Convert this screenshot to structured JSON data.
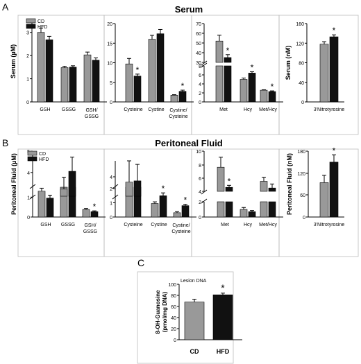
{
  "panel_letters": {
    "a": "A",
    "b": "B",
    "c": "C"
  },
  "titles": {
    "serum": "Serum",
    "peritoneal": "Peritoneal Fluid"
  },
  "legend": {
    "cd": "CD",
    "hfd": "HFD"
  },
  "colors": {
    "cd": "#999999",
    "hfd": "#111111"
  },
  "star": "*",
  "chart_data": [
    {
      "id": "a1",
      "type": "bar",
      "panel": "A",
      "ylabel": "Serum (µM)",
      "ylim": [
        0,
        3.5
      ],
      "yticks": [
        "0",
        "1",
        "2",
        "3"
      ],
      "categories": [
        "GSH",
        "GSSG",
        "GSH/ GSSG"
      ],
      "series": [
        {
          "name": "CD",
          "values": [
            3.0,
            1.48,
            2.03
          ],
          "err": [
            0.18,
            0.06,
            0.12
          ]
        },
        {
          "name": "HFD",
          "values": [
            2.68,
            1.5,
            1.8
          ],
          "err": [
            0.15,
            0.06,
            0.1
          ]
        }
      ],
      "sig": [
        false,
        false,
        false
      ]
    },
    {
      "id": "a2",
      "type": "bar",
      "panel": "A",
      "ylabel": "",
      "ylim": [
        0,
        20
      ],
      "yticks": [
        "0",
        "5",
        "10",
        "15",
        "20"
      ],
      "categories": [
        "Cysteine",
        "Cystine",
        "Cystine/ Cysteine"
      ],
      "series": [
        {
          "name": "CD",
          "values": [
            9.7,
            16.0,
            1.7
          ],
          "err": [
            1.4,
            1.0,
            0.15
          ]
        },
        {
          "name": "HFD",
          "values": [
            6.6,
            17.4,
            2.7
          ],
          "err": [
            0.5,
            1.1,
            0.3
          ]
        }
      ],
      "sig": [
        true,
        false,
        true
      ]
    },
    {
      "id": "a3",
      "type": "bar",
      "panel": "A",
      "ylabel": "",
      "ylim": [
        0,
        70
      ],
      "broken_axis": true,
      "yticks": [
        "0",
        "2",
        "4",
        "6",
        "8",
        "30",
        "40",
        "50",
        "60",
        "70"
      ],
      "categories": [
        "Met",
        "Hcy",
        "Met/Hcy"
      ],
      "series": [
        {
          "name": "CD",
          "values": [
            52,
            5.0,
            2.6
          ],
          "err": [
            6,
            0.3,
            0.1
          ]
        },
        {
          "name": "HFD",
          "values": [
            35,
            6.4,
            2.3
          ],
          "err": [
            3,
            0.3,
            0.15
          ]
        }
      ],
      "sig": [
        true,
        true,
        true
      ]
    },
    {
      "id": "a4",
      "type": "bar",
      "panel": "A",
      "ylabel": "Serum (nM)",
      "ylim": [
        0,
        160
      ],
      "yticks": [
        "0",
        "40",
        "80",
        "120",
        "160"
      ],
      "categories": [
        "3'Nitrotyrosine"
      ],
      "series": [
        {
          "name": "CD",
          "values": [
            118
          ],
          "err": [
            5
          ]
        },
        {
          "name": "HFD",
          "values": [
            133
          ],
          "err": [
            4
          ]
        }
      ],
      "sig": [
        true
      ]
    },
    {
      "id": "b1",
      "type": "bar",
      "panel": "B",
      "ylabel": "Peritoneal Fluid (µM)",
      "broken_axis": true,
      "yticks": [
        "0",
        "1",
        "4",
        "5"
      ],
      "categories": [
        "GSH",
        "GSSG",
        "GSH/ GSSG"
      ],
      "series": [
        {
          "name": "CD",
          "values": [
            1.3,
            3.4,
            0.38
          ],
          "err": [
            0.15,
            0.5,
            0.05
          ]
        },
        {
          "name": "HFD",
          "values": [
            0.95,
            4.15,
            0.27
          ],
          "err": [
            0.15,
            0.6,
            0.04
          ]
        }
      ],
      "sig": [
        false,
        false,
        true
      ]
    },
    {
      "id": "b2",
      "type": "bar",
      "panel": "B",
      "ylabel": "",
      "broken_axis": true,
      "yticks": [
        "0",
        "1",
        "2",
        "4"
      ],
      "categories": [
        "Cysteine",
        "Cystine",
        "Cystine/ Cysteine"
      ],
      "series": [
        {
          "name": "CD",
          "values": [
            3.8,
            0.95,
            0.3
          ],
          "err": [
            0.9,
            0.12,
            0.08
          ]
        },
        {
          "name": "HFD",
          "values": [
            3.85,
            1.5,
            0.8
          ],
          "err": [
            0.7,
            0.2,
            0.1
          ]
        }
      ],
      "sig": [
        false,
        true,
        true
      ]
    },
    {
      "id": "b3",
      "type": "bar",
      "panel": "B",
      "ylabel": "",
      "broken_axis": true,
      "yticks": [
        "0",
        "2",
        "4",
        "6",
        "8",
        "10"
      ],
      "categories": [
        "Met",
        "Hcy",
        "Met/Hcy"
      ],
      "series": [
        {
          "name": "CD",
          "values": [
            7.6,
            1.0,
            5.5
          ],
          "err": [
            1.5,
            0.25,
            0.6
          ]
        },
        {
          "name": "HFD",
          "values": [
            4.6,
            0.7,
            4.5
          ],
          "err": [
            0.3,
            0.15,
            0.6
          ]
        }
      ],
      "sig": [
        true,
        false,
        false
      ]
    },
    {
      "id": "b4",
      "type": "bar",
      "panel": "B",
      "ylabel": "Peritoneal Fluid (nM)",
      "ylim": [
        0,
        180
      ],
      "yticks": [
        "0",
        "60",
        "120",
        "180"
      ],
      "categories": [
        "3'Nitrotyrosine"
      ],
      "series": [
        {
          "name": "CD",
          "values": [
            94
          ],
          "err": [
            20
          ]
        },
        {
          "name": "HFD",
          "values": [
            150
          ],
          "err": [
            20
          ]
        }
      ],
      "sig": [
        true
      ]
    },
    {
      "id": "c",
      "type": "bar",
      "panel": "C",
      "subtitle": "Lesion DNA",
      "ylabel": "8-OH-Guanosine (pmol/mg DNA)",
      "ylabel_lines": [
        "8-OH-Guanosine",
        "(pmol/mg DNA)"
      ],
      "ylim": [
        0,
        100
      ],
      "yticks": [
        "0",
        "20",
        "40",
        "60",
        "80",
        "100"
      ],
      "categories": [
        "CD",
        "HFD"
      ],
      "values": [
        68,
        81
      ],
      "err": [
        5,
        3
      ],
      "sig": [
        false,
        true
      ]
    }
  ]
}
